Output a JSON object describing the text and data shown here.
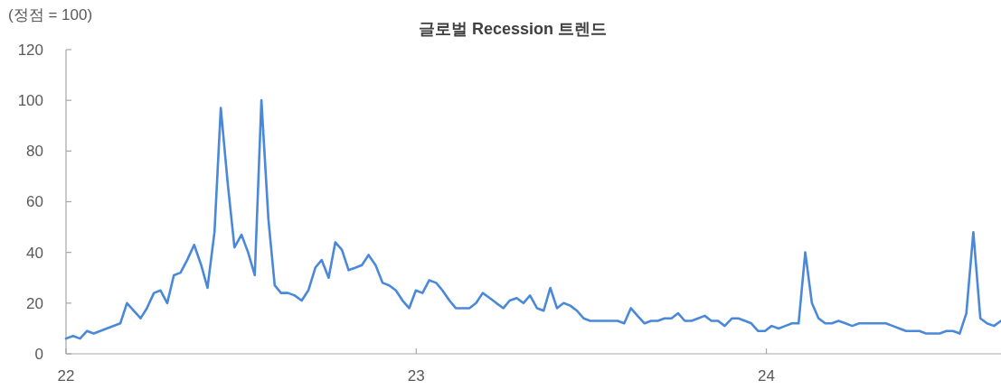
{
  "chart_data": {
    "type": "line",
    "title": "글로벌 Recession 트렌드",
    "ylabel": "(정점 = 100)",
    "x": [
      22.0,
      22.02,
      22.04,
      22.06,
      22.079,
      22.155,
      22.174,
      22.213,
      22.231,
      22.251,
      22.27,
      22.289,
      22.308,
      22.327,
      22.346,
      22.366,
      22.386,
      22.404,
      22.424,
      22.442,
      22.462,
      22.481,
      22.501,
      22.52,
      22.539,
      22.558,
      22.578,
      22.596,
      22.614,
      22.634,
      22.653,
      22.673,
      22.692,
      22.712,
      22.73,
      22.75,
      22.769,
      22.788,
      22.807,
      22.827,
      22.845,
      22.864,
      22.884,
      22.904,
      22.923,
      22.942,
      22.961,
      22.98,
      22.999,
      23.018,
      23.037,
      23.057,
      23.075,
      23.095,
      23.113,
      23.133,
      23.152,
      23.171,
      23.19,
      23.21,
      23.229,
      23.249,
      23.267,
      23.287,
      23.306,
      23.325,
      23.345,
      23.364,
      23.383,
      23.402,
      23.421,
      23.44,
      23.459,
      23.478,
      23.497,
      23.517,
      23.537,
      23.556,
      23.575,
      23.594,
      23.613,
      23.632,
      23.652,
      23.671,
      23.69,
      23.709,
      23.729,
      23.748,
      23.767,
      23.786,
      23.805,
      23.824,
      23.843,
      23.862,
      23.881,
      23.902,
      23.92,
      23.939,
      23.957,
      23.976,
      23.996,
      24.015,
      24.035,
      24.054,
      24.073,
      24.092,
      24.111,
      24.13,
      24.149,
      24.168,
      24.187,
      24.206,
      24.226,
      24.245,
      24.265,
      24.284,
      24.303,
      24.322,
      24.341,
      24.361,
      24.38,
      24.399,
      24.418,
      24.437,
      24.456,
      24.476,
      24.495,
      24.514,
      24.533,
      24.552,
      24.571,
      24.591,
      24.611,
      24.63,
      24.65,
      24.67
    ],
    "series": [
      {
        "color": "#4a88d9",
        "values": [
          6,
          7,
          6,
          9,
          8,
          12,
          20,
          14,
          18,
          24,
          25,
          20,
          31,
          32,
          37,
          43,
          35,
          26,
          48,
          97,
          67,
          42,
          47,
          40,
          31,
          100,
          53,
          27,
          24,
          24,
          23,
          21,
          25,
          34,
          37,
          30,
          44,
          41,
          33,
          34,
          35,
          39,
          35,
          28,
          27,
          25,
          21,
          18,
          25,
          24,
          29,
          28,
          25,
          21,
          18,
          18,
          18,
          20,
          24,
          22,
          20,
          18,
          21,
          22,
          20,
          23,
          18,
          17,
          26,
          18,
          20,
          19,
          17,
          14,
          13,
          13,
          13,
          13,
          13,
          12,
          18,
          15,
          12,
          13,
          13,
          14,
          14,
          16,
          13,
          13,
          14,
          15,
          13,
          13,
          11,
          14,
          14,
          13,
          12,
          9,
          9,
          11,
          10,
          11,
          12,
          12,
          40,
          20,
          14,
          12,
          12,
          13,
          12,
          11,
          12,
          12,
          12,
          12,
          12,
          11,
          10,
          9,
          9,
          9,
          8,
          8,
          8,
          9,
          9,
          8,
          16,
          48,
          14,
          12,
          11,
          13
        ]
      }
    ],
    "xlim": [
      22,
      24.67
    ],
    "ylim": [
      0,
      120
    ],
    "xticks": [
      22,
      23,
      24
    ],
    "yticks": [
      0,
      20,
      40,
      60,
      80,
      100,
      120
    ]
  }
}
